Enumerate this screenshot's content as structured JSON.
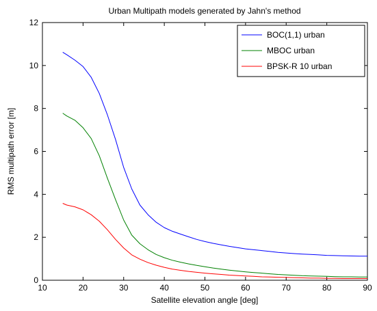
{
  "chart_data": {
    "type": "line",
    "title": "Urban Multipath models generated by Jahn's method",
    "xlabel": "Satellite elevation angle [deg]",
    "ylabel": "RMS multipath error [m]",
    "xlim": [
      10,
      90
    ],
    "ylim": [
      0,
      12
    ],
    "xticks": [
      10,
      20,
      30,
      40,
      50,
      60,
      70,
      80,
      90
    ],
    "yticks": [
      0,
      2,
      4,
      6,
      8,
      10,
      12
    ],
    "xtick_labels": [
      "10",
      "20",
      "30",
      "40",
      "50",
      "60",
      "70",
      "80",
      "90"
    ],
    "ytick_labels": [
      "0",
      "2",
      "4",
      "6",
      "8",
      "10",
      "12"
    ],
    "grid": false,
    "legend_position": "top-right",
    "series": [
      {
        "name": "BOC(1,1) urban",
        "color": "#0000ff",
        "x": [
          15,
          16,
          18,
          20,
          22,
          24,
          26,
          28,
          30,
          32,
          34,
          36,
          38,
          40,
          42,
          44,
          46,
          48,
          50,
          52,
          54,
          56,
          58,
          60,
          62,
          64,
          66,
          68,
          70,
          72,
          74,
          76,
          78,
          80,
          82,
          84,
          86,
          88,
          90
        ],
        "y": [
          10.62,
          10.5,
          10.25,
          9.95,
          9.45,
          8.7,
          7.7,
          6.55,
          5.25,
          4.25,
          3.5,
          3.05,
          2.7,
          2.45,
          2.28,
          2.15,
          2.02,
          1.9,
          1.8,
          1.72,
          1.65,
          1.58,
          1.52,
          1.46,
          1.42,
          1.38,
          1.34,
          1.3,
          1.27,
          1.24,
          1.22,
          1.2,
          1.18,
          1.16,
          1.15,
          1.14,
          1.13,
          1.12,
          1.12
        ]
      },
      {
        "name": "MBOC urban",
        "color": "#008000",
        "x": [
          15,
          16,
          18,
          20,
          22,
          24,
          26,
          28,
          30,
          32,
          34,
          36,
          38,
          40,
          42,
          44,
          46,
          48,
          50,
          52,
          54,
          56,
          58,
          60,
          62,
          64,
          66,
          68,
          70,
          72,
          74,
          76,
          78,
          80,
          82,
          84,
          86,
          88,
          90
        ],
        "y": [
          7.78,
          7.65,
          7.45,
          7.1,
          6.6,
          5.8,
          4.75,
          3.75,
          2.8,
          2.1,
          1.7,
          1.42,
          1.2,
          1.05,
          0.93,
          0.84,
          0.76,
          0.69,
          0.63,
          0.57,
          0.52,
          0.47,
          0.43,
          0.39,
          0.36,
          0.33,
          0.3,
          0.27,
          0.25,
          0.23,
          0.21,
          0.2,
          0.19,
          0.18,
          0.17,
          0.16,
          0.16,
          0.15,
          0.15
        ]
      },
      {
        "name": "BPSK-R 10 urban",
        "color": "#ff0000",
        "x": [
          15,
          16,
          18,
          20,
          22,
          24,
          26,
          28,
          30,
          32,
          34,
          36,
          38,
          40,
          42,
          44,
          46,
          48,
          50,
          52,
          54,
          56,
          58,
          60,
          62,
          64,
          66,
          68,
          70,
          72,
          74,
          76,
          78,
          80,
          82,
          84,
          86,
          88,
          90
        ],
        "y": [
          3.58,
          3.5,
          3.42,
          3.28,
          3.05,
          2.75,
          2.35,
          1.9,
          1.5,
          1.18,
          0.98,
          0.82,
          0.7,
          0.6,
          0.52,
          0.46,
          0.41,
          0.37,
          0.33,
          0.3,
          0.27,
          0.24,
          0.22,
          0.2,
          0.18,
          0.16,
          0.15,
          0.14,
          0.13,
          0.12,
          0.11,
          0.1,
          0.1,
          0.09,
          0.09,
          0.08,
          0.08,
          0.08,
          0.08
        ]
      }
    ]
  }
}
